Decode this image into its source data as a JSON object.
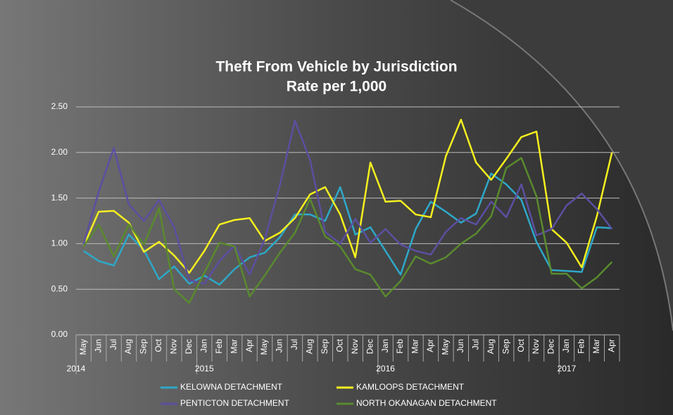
{
  "chart_data": {
    "type": "line",
    "title": "Theft From Vehicle by Jurisdiction",
    "subtitle": "Rate per 1,000",
    "categories": [
      "May",
      "Jun",
      "Jul",
      "Aug",
      "Sep",
      "Oct",
      "Nov",
      "Dec",
      "Jan",
      "Feb",
      "Mar",
      "Apr",
      "May",
      "Jun",
      "Jul",
      "Aug",
      "Sep",
      "Oct",
      "Nov",
      "Dec",
      "Jan",
      "Feb",
      "Mar",
      "Apr",
      "May",
      "Jun",
      "Jul",
      "Aug",
      "Sep",
      "Oct",
      "Nov",
      "Dec",
      "Jan",
      "Feb",
      "Mar",
      "Apr"
    ],
    "year_groups": [
      {
        "label": "2014",
        "months": 8
      },
      {
        "label": "2015",
        "months": 12
      },
      {
        "label": "2016",
        "months": 12
      },
      {
        "label": "2017",
        "months": 4
      }
    ],
    "series": [
      {
        "name": "KELOWNA DETACHMENT",
        "color": "#2ea8c8",
        "values": [
          0.92,
          0.81,
          0.76,
          1.1,
          0.93,
          0.61,
          0.75,
          0.56,
          0.65,
          0.55,
          0.72,
          0.85,
          0.9,
          1.07,
          1.32,
          1.32,
          1.25,
          1.62,
          1.1,
          1.18,
          0.92,
          0.66,
          1.16,
          1.46,
          1.35,
          1.23,
          1.33,
          1.77,
          1.65,
          1.48,
          1.02,
          0.71,
          0.7,
          0.69,
          1.18,
          1.17
        ]
      },
      {
        "name": "KAMLOOPS DETACHMENT",
        "color": "#f5f01e",
        "values": [
          0.97,
          1.35,
          1.36,
          1.23,
          0.91,
          1.02,
          0.87,
          0.68,
          0.92,
          1.21,
          1.26,
          1.28,
          1.03,
          1.12,
          1.28,
          1.54,
          1.62,
          1.32,
          0.85,
          1.89,
          1.46,
          1.47,
          1.32,
          1.29,
          1.96,
          2.36,
          1.89,
          1.7,
          1.93,
          2.17,
          2.23,
          1.16,
          1.01,
          0.74,
          1.3,
          2.0
        ]
      },
      {
        "name": "PENTICTON DETACHMENT",
        "color": "#5b4fa0",
        "values": [
          0.99,
          1.57,
          2.05,
          1.43,
          1.25,
          1.48,
          1.18,
          0.6,
          0.56,
          0.81,
          0.98,
          0.66,
          1.05,
          1.64,
          2.35,
          1.92,
          1.13,
          1.0,
          1.27,
          1.01,
          1.16,
          0.99,
          0.92,
          0.88,
          1.13,
          1.28,
          1.21,
          1.46,
          1.29,
          1.65,
          1.09,
          1.16,
          1.42,
          1.55,
          1.38,
          1.16
        ]
      },
      {
        "name": "NORTH OKANAGAN DETACHMENT",
        "color": "#5a8a2e",
        "values": [
          0.97,
          1.21,
          0.86,
          1.21,
          0.99,
          1.39,
          0.5,
          0.35,
          0.68,
          1.01,
          0.97,
          0.42,
          0.65,
          0.9,
          1.12,
          1.49,
          1.08,
          0.97,
          0.72,
          0.66,
          0.42,
          0.59,
          0.86,
          0.78,
          0.85,
          1.0,
          1.11,
          1.3,
          1.83,
          1.94,
          1.52,
          0.67,
          0.67,
          0.51,
          0.63,
          0.8
        ]
      }
    ],
    "ylim": [
      0,
      2.5
    ],
    "yticks": [
      {
        "value": 0,
        "label": "0.00"
      },
      {
        "value": 0.5,
        "label": "0.50"
      },
      {
        "value": 1,
        "label": "1.00"
      },
      {
        "value": 1.5,
        "label": "1.50"
      },
      {
        "value": 2,
        "label": "2.00"
      },
      {
        "value": 2.5,
        "label": "2.50"
      }
    ],
    "grid": true,
    "legend": "bottom"
  }
}
